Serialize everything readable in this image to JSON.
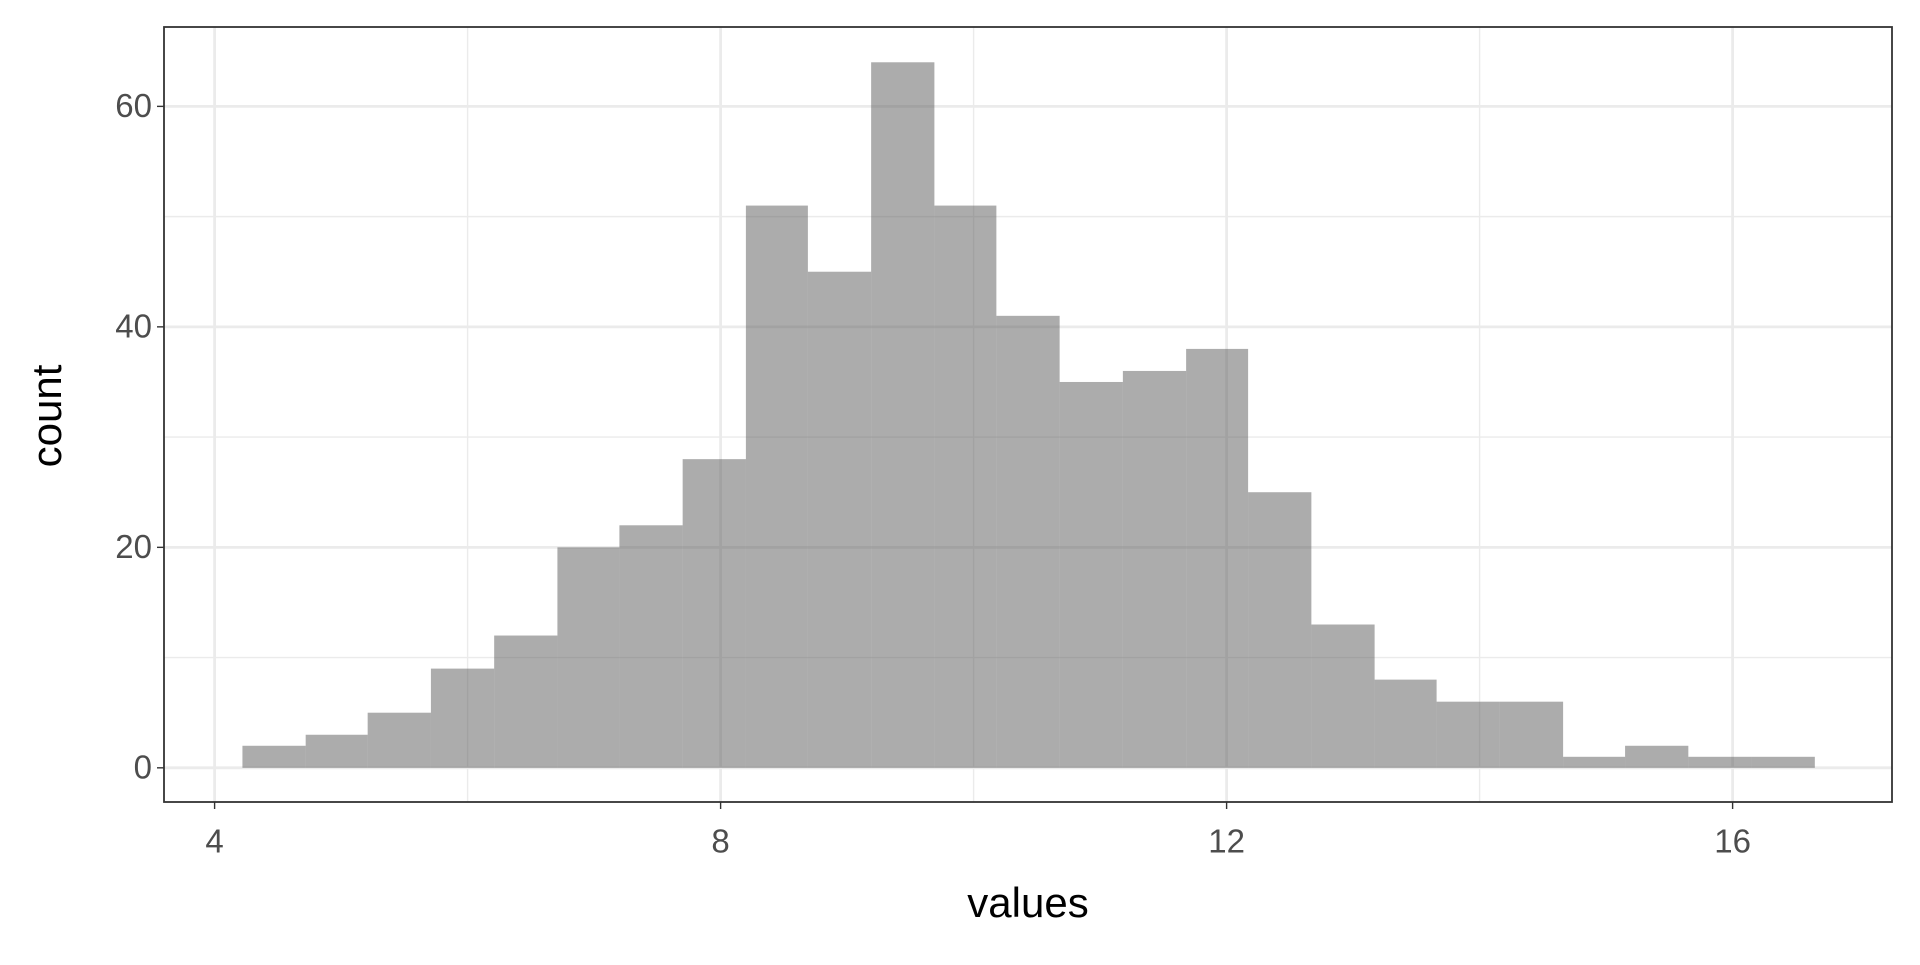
{
  "chart_data": {
    "type": "histogram",
    "x_label": "values",
    "y_label": "count",
    "bins": [
      4.22,
      4.72,
      5.21,
      5.71,
      6.21,
      6.71,
      7.2,
      7.7,
      8.2,
      8.69,
      9.19,
      9.69,
      10.18,
      10.68,
      11.18,
      11.68,
      12.17,
      12.67,
      13.17,
      13.66,
      14.16,
      14.66,
      15.15,
      15.65,
      16.15,
      16.65
    ],
    "values": [
      2,
      3,
      5,
      9,
      12,
      20,
      22,
      28,
      51,
      45,
      64,
      51,
      41,
      35,
      36,
      38,
      25,
      13,
      8,
      6,
      6,
      1,
      2,
      1,
      1
    ],
    "color": "#595959",
    "alpha": 0.5,
    "xlim": [
      3.6,
      17.26
    ],
    "ylim": [
      -3.1,
      67.2
    ],
    "xticks": [
      4,
      8,
      12,
      16
    ],
    "yticks": [
      0,
      20,
      40,
      60
    ],
    "grid": true,
    "minor_grid": true
  }
}
